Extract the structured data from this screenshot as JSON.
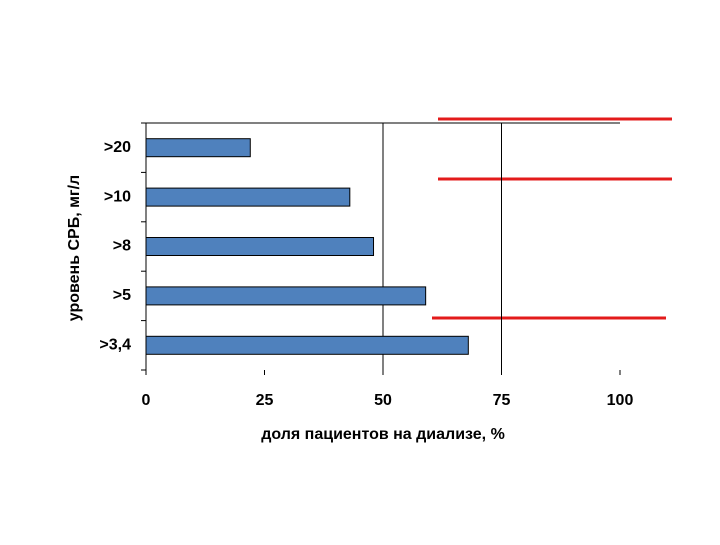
{
  "chart_data": {
    "type": "hbar",
    "x_label": "доля пациентов на диализе, %",
    "y_label": "уровень СРБ, мг/л",
    "categories": [
      ">20",
      ">10",
      ">8",
      ">5",
      ">3,4"
    ],
    "values": [
      22,
      43,
      48,
      59,
      68
    ],
    "color": "#4f81bd",
    "xlim": [
      0,
      100
    ],
    "xticks": [
      0,
      25,
      50,
      75,
      100
    ],
    "x_gridlines": [
      50,
      75
    ]
  }
}
